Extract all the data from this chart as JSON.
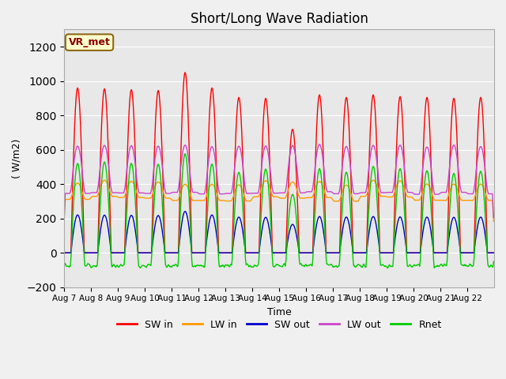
{
  "title": "Short/Long Wave Radiation",
  "xlabel": "Time",
  "ylabel": "( W/m2)",
  "annotation": "VR_met",
  "ylim": [
    -200,
    1300
  ],
  "yticks": [
    -200,
    0,
    200,
    400,
    600,
    800,
    1000,
    1200
  ],
  "background_color": "#e8e8e8",
  "fig_bg_color": "#f0f0f0",
  "series": {
    "SW_in": {
      "color": "#ff0000",
      "label": "SW in"
    },
    "LW_in": {
      "color": "#ff9900",
      "label": "LW in"
    },
    "SW_out": {
      "color": "#0000cc",
      "label": "SW out"
    },
    "LW_out": {
      "color": "#cc44cc",
      "label": "LW out"
    },
    "Rnet": {
      "color": "#00cc00",
      "label": "Rnet"
    }
  },
  "xticklabels": [
    "Aug 7",
    "Aug 8",
    "Aug 9",
    "Aug 10",
    "Aug 11",
    "Aug 12",
    "Aug 13",
    "Aug 14",
    "Aug 15",
    "Aug 16",
    "Aug 17",
    "Aug 18",
    "Aug 19",
    "Aug 20",
    "Aug 21",
    "Aug 22"
  ],
  "sw_in_peaks": [
    960,
    955,
    950,
    945,
    1050,
    960,
    905,
    900,
    720,
    920,
    905,
    920,
    910,
    905,
    900,
    905
  ],
  "n_days": 16,
  "points_per_day": 48
}
